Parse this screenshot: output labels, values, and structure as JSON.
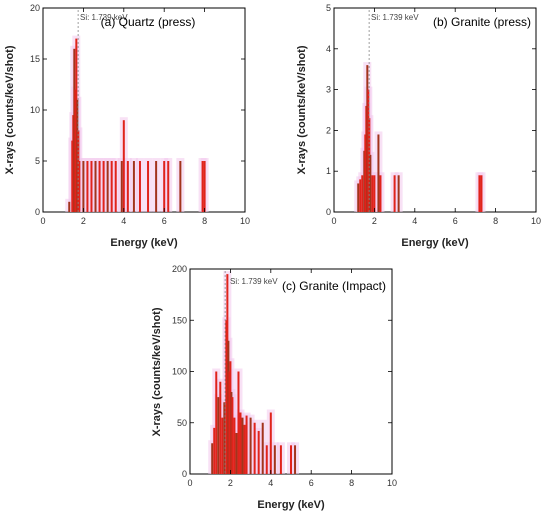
{
  "chart_data": [
    {
      "type": "bar",
      "title": "(a) Quartz (press)",
      "xlabel": "Energy (keV)",
      "ylabel": "X-rays (counts/keV/shot)",
      "xlim": [
        0,
        10
      ],
      "ylim": [
        0,
        20
      ],
      "xticks": [
        0,
        2,
        4,
        6,
        8,
        10
      ],
      "yticks": [
        0,
        5,
        10,
        15,
        20
      ],
      "annotation": "Si: 1.739 keV",
      "annotation_x": 1.739,
      "x": [
        1.3,
        1.45,
        1.5,
        1.55,
        1.6,
        1.65,
        1.7,
        1.75,
        1.8,
        2.0,
        2.2,
        2.4,
        2.6,
        2.8,
        3.0,
        3.2,
        3.4,
        3.6,
        3.9,
        4.0,
        4.2,
        4.5,
        4.8,
        5.2,
        5.6,
        6.0,
        6.2,
        6.8,
        7.9,
        8.0
      ],
      "values": [
        1,
        7,
        9.5,
        16,
        12,
        17,
        11,
        8,
        5,
        5,
        5,
        5,
        5,
        5,
        5,
        5,
        5,
        5,
        5,
        9,
        5,
        5,
        5,
        5,
        5,
        5,
        5,
        5,
        5,
        5
      ]
    },
    {
      "type": "bar",
      "title": "(b) Granite (press)",
      "xlabel": "Energy (keV)",
      "ylabel": "X-rays (counts/keV/shot)",
      "xlim": [
        0,
        10
      ],
      "ylim": [
        0,
        5
      ],
      "xticks": [
        0,
        2,
        4,
        6,
        8,
        10
      ],
      "yticks": [
        0,
        1,
        2,
        3,
        4,
        5
      ],
      "annotation": "Si: 1.739 keV",
      "annotation_x": 1.739,
      "x": [
        1.2,
        1.3,
        1.4,
        1.5,
        1.55,
        1.6,
        1.65,
        1.7,
        1.75,
        1.8,
        1.9,
        2.0,
        2.2,
        2.3,
        3.0,
        3.2,
        7.2,
        7.3
      ],
      "values": [
        0.7,
        0.8,
        0.9,
        1.5,
        1.9,
        2.6,
        3.6,
        3.0,
        2.3,
        1.4,
        0.9,
        0.9,
        1.9,
        0.9,
        0.9,
        0.9,
        0.9,
        0.9
      ]
    },
    {
      "type": "bar",
      "title": "(c) Granite (Impact)",
      "xlabel": "Energy (keV)",
      "ylabel": "X-rays (counts/keV/shot)",
      "xlim": [
        0,
        10
      ],
      "ylim": [
        0,
        200
      ],
      "xticks": [
        0,
        2,
        4,
        6,
        8,
        10
      ],
      "yticks": [
        0,
        50,
        100,
        150,
        200
      ],
      "annotation": "Si: 1.739 keV",
      "annotation_x": 1.739,
      "x": [
        1.1,
        1.2,
        1.3,
        1.4,
        1.5,
        1.6,
        1.7,
        1.8,
        1.85,
        1.9,
        1.95,
        2.0,
        2.05,
        2.1,
        2.2,
        2.3,
        2.4,
        2.5,
        2.6,
        2.7,
        2.8,
        3.0,
        3.2,
        3.4,
        3.6,
        3.8,
        4.0,
        4.2,
        4.5,
        5.0,
        5.2
      ],
      "values": [
        30,
        45,
        100,
        75,
        90,
        55,
        70,
        150,
        195,
        130,
        100,
        110,
        80,
        75,
        55,
        40,
        100,
        60,
        55,
        48,
        57,
        55,
        50,
        42,
        50,
        28,
        60,
        28,
        28,
        28,
        28
      ]
    }
  ]
}
